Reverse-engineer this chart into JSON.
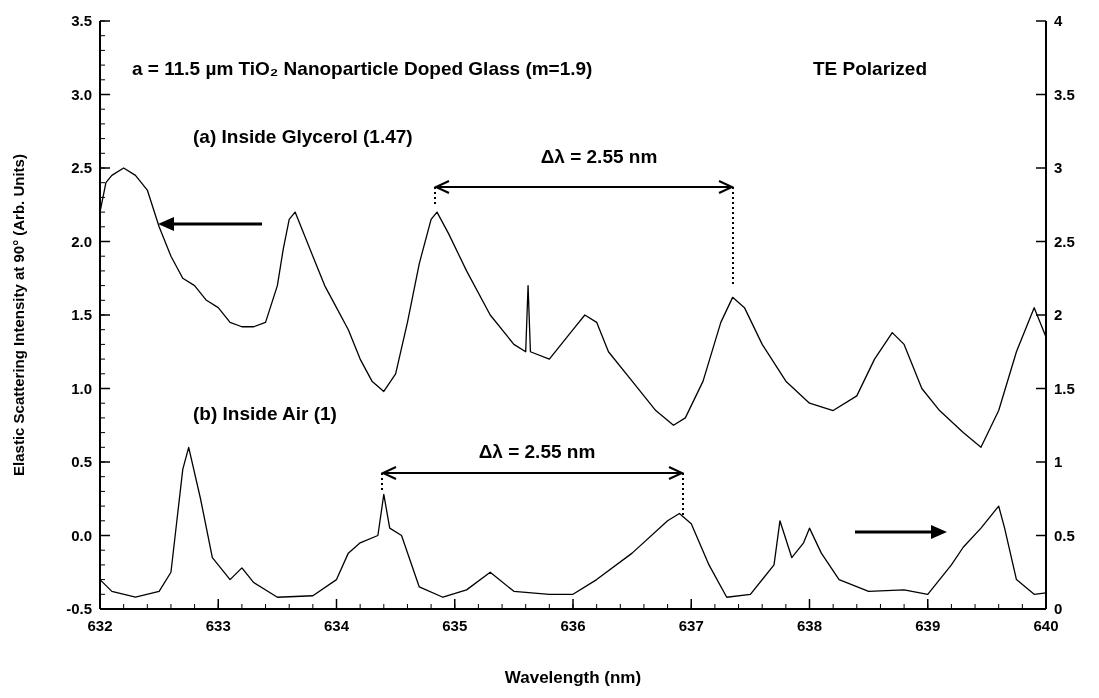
{
  "chart_data": {
    "type": "line",
    "title": "a = 11.5 µm TiO₂ Nanoparticle Doped Glass (m=1.9)",
    "subtitle": "TE Polarized",
    "xlabel": "Wavelength (nm)",
    "ylabel": "Elastic Scattering Intensity at 90° (Arb. Units)",
    "xlim": [
      632,
      640
    ],
    "xticks": [
      632,
      633,
      634,
      635,
      636,
      637,
      638,
      639,
      640
    ],
    "ylim": [
      -0.5,
      3.5
    ],
    "yticks": [
      -0.5,
      {
        "value": 0,
        "label": "0.0"
      },
      0.5,
      {
        "value": 1,
        "label": "1.0"
      },
      1.5,
      {
        "value": 2,
        "label": "2.0"
      },
      2.5,
      {
        "value": 3,
        "label": "3.0"
      },
      3.5
    ],
    "y2lim": [
      0,
      4
    ],
    "y2ticks": [
      0,
      0.5,
      1,
      1.5,
      2,
      2.5,
      3,
      3.5,
      4
    ],
    "grid": false,
    "marker": "none",
    "line_style": "solid",
    "annotations": [
      "(a) Inside Glycerol (1.47)",
      "Δλ = 2.55 nm",
      "(b) Inside Air (1)",
      "Δλ = 2.55 nm"
    ],
    "series": [
      {
        "color": "#000000",
        "x": [
          632.0,
          632.05,
          632.1,
          632.2,
          632.3,
          632.4,
          632.5,
          632.6,
          632.7,
          632.8,
          632.9,
          633.0,
          633.1,
          633.2,
          633.3,
          633.4,
          633.5,
          633.55,
          633.6,
          633.65,
          633.7,
          633.8,
          633.9,
          634.0,
          634.1,
          634.2,
          634.3,
          634.4,
          634.5,
          634.6,
          634.7,
          634.8,
          634.85,
          634.95,
          635.1,
          635.3,
          635.5,
          635.6,
          635.62,
          635.64,
          635.8,
          635.9,
          636.0,
          636.1,
          636.2,
          636.3,
          636.5,
          636.7,
          636.85,
          636.95,
          637.1,
          637.25,
          637.35,
          637.45,
          637.6,
          637.8,
          638.0,
          638.2,
          638.4,
          638.55,
          638.7,
          638.8,
          638.95,
          639.1,
          639.3,
          639.45,
          639.6,
          639.75,
          639.9,
          640.0
        ],
        "values": [
          2.2,
          2.4,
          2.45,
          2.5,
          2.45,
          2.35,
          2.1,
          1.9,
          1.75,
          1.7,
          1.6,
          1.55,
          1.45,
          1.42,
          1.42,
          1.45,
          1.7,
          1.95,
          2.15,
          2.2,
          2.1,
          1.9,
          1.7,
          1.55,
          1.4,
          1.2,
          1.05,
          0.98,
          1.1,
          1.45,
          1.85,
          2.15,
          2.2,
          2.05,
          1.8,
          1.5,
          1.3,
          1.25,
          1.7,
          1.25,
          1.2,
          1.3,
          1.4,
          1.5,
          1.45,
          1.25,
          1.05,
          0.85,
          0.75,
          0.8,
          1.05,
          1.45,
          1.62,
          1.55,
          1.3,
          1.05,
          0.9,
          0.85,
          0.95,
          1.2,
          1.38,
          1.3,
          1.0,
          0.85,
          0.7,
          0.6,
          0.85,
          1.25,
          1.55,
          1.35
        ]
      },
      {
        "color": "#000000",
        "axis": "y2",
        "x": [
          632.0,
          632.1,
          632.3,
          632.5,
          632.6,
          632.65,
          632.7,
          632.75,
          632.85,
          632.95,
          633.1,
          633.2,
          633.3,
          633.5,
          633.8,
          634.0,
          634.1,
          634.2,
          634.35,
          634.4,
          634.45,
          634.55,
          634.7,
          634.9,
          635.1,
          635.3,
          635.5,
          635.8,
          636.0,
          636.2,
          636.5,
          636.8,
          636.9,
          637.0,
          637.15,
          637.3,
          637.5,
          637.7,
          637.75,
          637.85,
          637.95,
          638.0,
          638.1,
          638.25,
          638.5,
          638.8,
          639.0,
          639.2,
          639.3,
          639.45,
          639.6,
          639.65,
          639.75,
          639.9,
          640.0
        ],
        "values": [
          0.2,
          0.12,
          0.08,
          0.12,
          0.25,
          0.6,
          0.95,
          1.1,
          0.75,
          0.35,
          0.2,
          0.28,
          0.18,
          0.08,
          0.09,
          0.2,
          0.38,
          0.45,
          0.5,
          0.78,
          0.55,
          0.5,
          0.15,
          0.08,
          0.13,
          0.25,
          0.12,
          0.1,
          0.1,
          0.2,
          0.38,
          0.6,
          0.65,
          0.58,
          0.3,
          0.08,
          0.1,
          0.3,
          0.6,
          0.35,
          0.45,
          0.55,
          0.38,
          0.2,
          0.12,
          0.13,
          0.1,
          0.3,
          0.42,
          0.55,
          0.7,
          0.55,
          0.2,
          0.1,
          0.11
        ]
      }
    ]
  }
}
